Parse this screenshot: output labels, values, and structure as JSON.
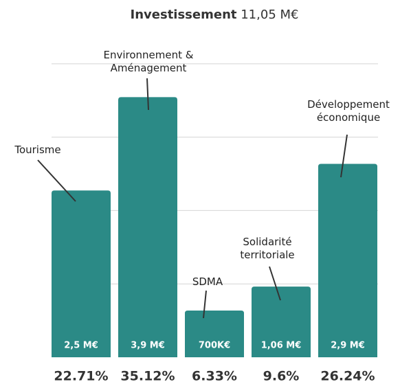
{
  "chart_data": {
    "type": "bar",
    "title": "Investissement",
    "subtitle": "11,05 M€",
    "categories": [
      "Tourisme",
      "Environnement &\nAménagement",
      "SDMA",
      "Solidarité\nterritoriale",
      "Développement\néconomique"
    ],
    "values": [
      2.5,
      3.9,
      0.7,
      1.06,
      2.9
    ],
    "value_labels": [
      "2,5 M€",
      "3,9 M€",
      "700K€",
      "1,06 M€",
      "2,9 M€"
    ],
    "shares": [
      22.71,
      35.12,
      6.33,
      9.6,
      26.24
    ],
    "share_labels": [
      "22.71%",
      "35.12%",
      "6.33%",
      "9.6%",
      "26.24%"
    ],
    "color": "#2b8a86",
    "ylim": [
      0,
      4.45
    ],
    "yticks": [
      1.1,
      2.2,
      3.3,
      4.4
    ],
    "grid": true
  }
}
